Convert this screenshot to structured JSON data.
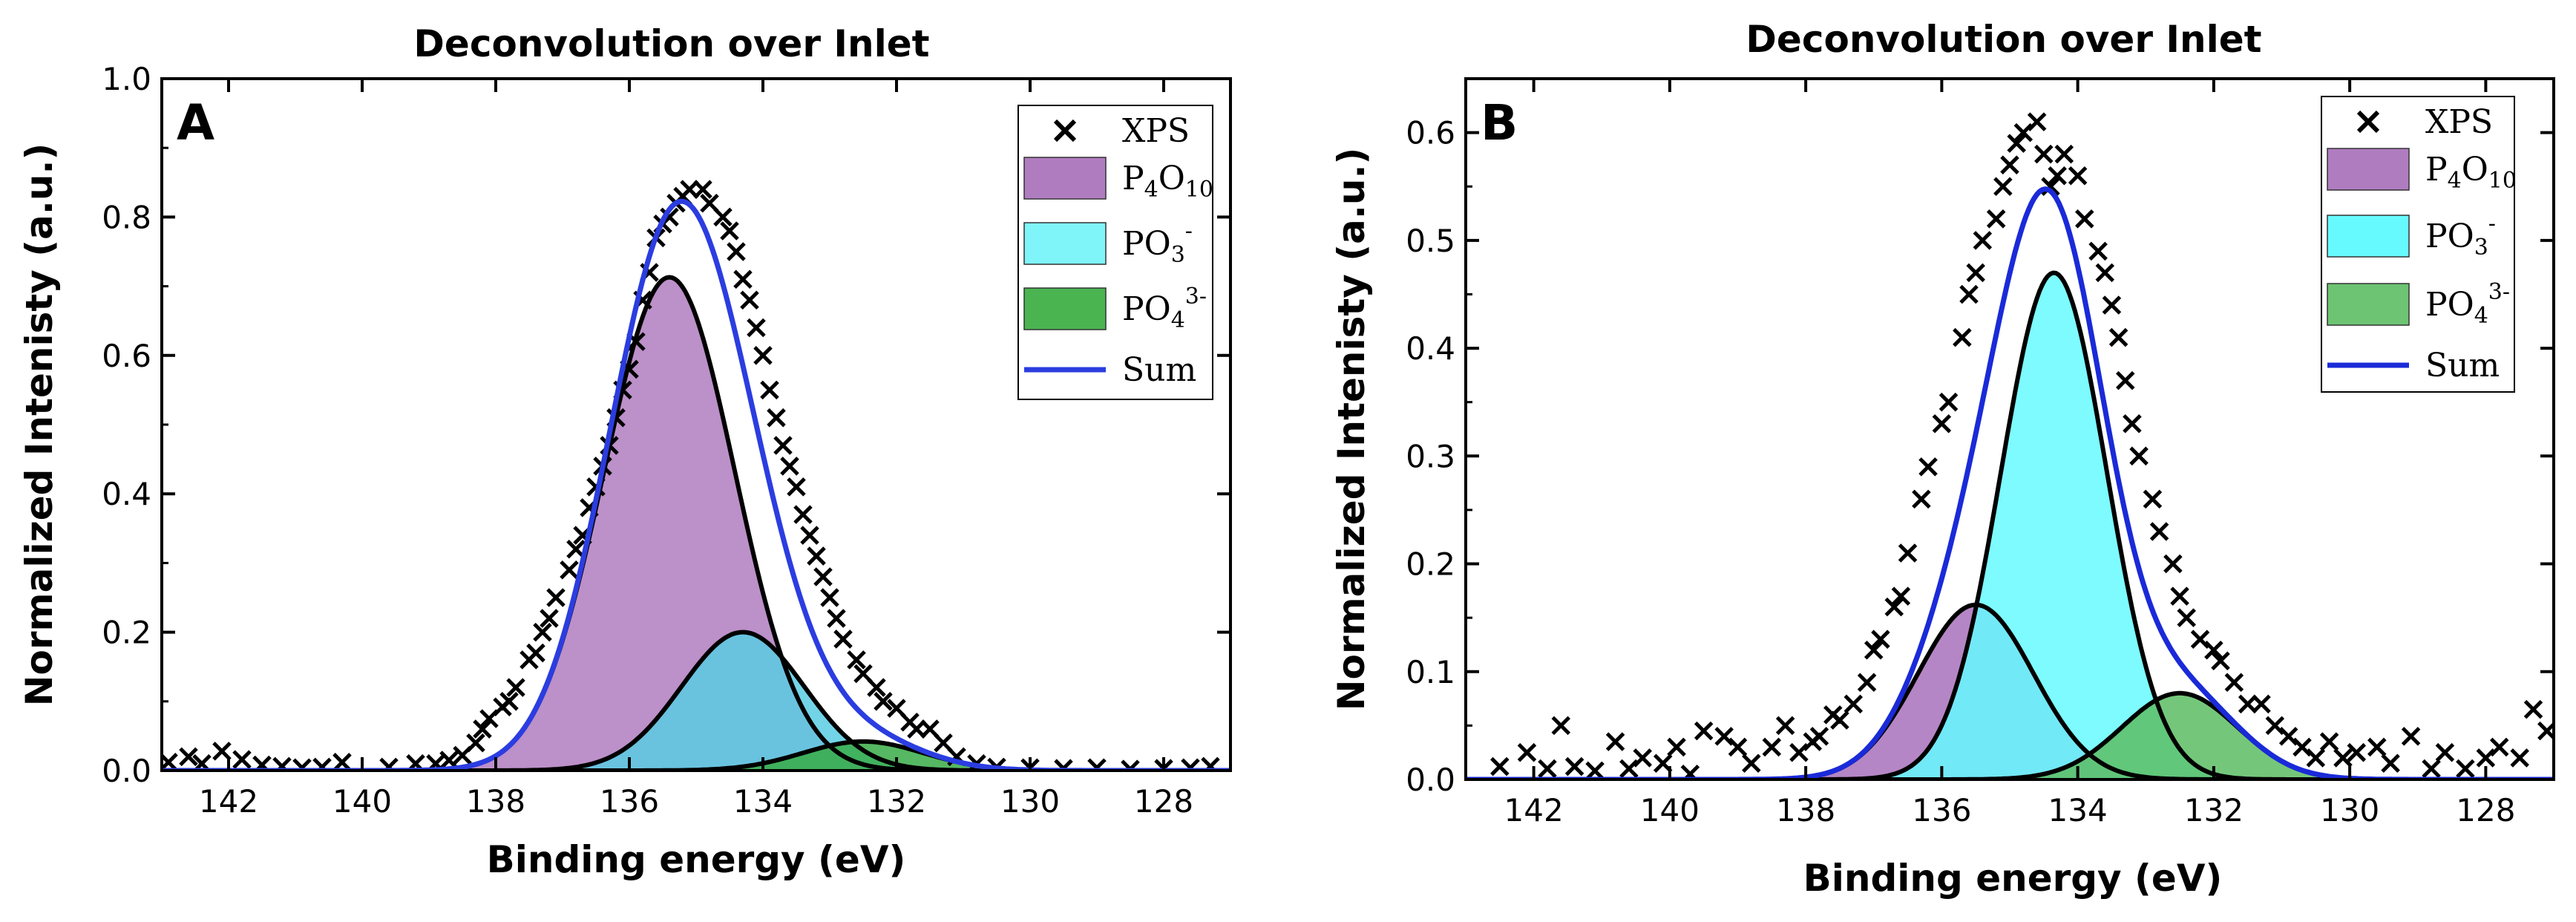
{
  "chart_data": [
    {
      "panel": "A",
      "type": "area",
      "title": "Deconvolution over Inlet",
      "xlabel": "Binding energy (eV)",
      "ylabel": "Normalized Intenisty (a.u.)",
      "xlim": [
        143,
        127
      ],
      "ylim": [
        0,
        1.0
      ],
      "x_reversed": true,
      "xticks": [
        142,
        140,
        138,
        136,
        134,
        132,
        130,
        128
      ],
      "xtick_labels": [
        "142",
        "140",
        "138",
        "136",
        "134",
        "132",
        "130",
        "128"
      ],
      "yticks": [
        0.0,
        0.2,
        0.4,
        0.6,
        0.8,
        1.0
      ],
      "ytick_labels": [
        "0.0",
        "0.2",
        "0.4",
        "0.6",
        "0.8",
        "1.0"
      ],
      "legend_position": "top-right",
      "legend": [
        {
          "key": "xps",
          "kind": "marker",
          "label": "XPS",
          "color": "#000000"
        },
        {
          "key": "p4o10",
          "kind": "fill",
          "label": "P",
          "sub1": "4",
          "mid": "O",
          "sub2": "10",
          "color": "#b07cc0"
        },
        {
          "key": "po3",
          "kind": "fill",
          "label": "PO",
          "sub1": "3",
          "sup": "-",
          "color": "#7ff5fa"
        },
        {
          "key": "po4",
          "kind": "fill",
          "label": "PO",
          "sub1": "4",
          "sup": "3-",
          "color": "#4ab451"
        },
        {
          "key": "sum",
          "kind": "line",
          "label": "Sum",
          "color": "#2b3de0"
        }
      ],
      "components": [
        {
          "key": "p4o10",
          "center": 135.4,
          "amplitude": 0.713,
          "sigma": 0.98,
          "fill": "#b07cc0",
          "edge": "#000000"
        },
        {
          "key": "po3",
          "center": 134.3,
          "amplitude": 0.2,
          "sigma": 0.92,
          "fill": "#5bcde3",
          "edge": "#000000"
        },
        {
          "key": "po4",
          "center": 132.5,
          "amplitude": 0.042,
          "sigma": 0.9,
          "fill": "#38ac47",
          "edge": "#000000"
        }
      ],
      "sum_color": "#2b3de0",
      "noise_amplitude": 0.012,
      "xps_points": [
        [
          142.9,
          0.012
        ],
        [
          142.6,
          0.02
        ],
        [
          142.4,
          0.01
        ],
        [
          142.1,
          0.028
        ],
        [
          141.8,
          0.016
        ],
        [
          141.5,
          0.008
        ],
        [
          141.2,
          0.006
        ],
        [
          140.9,
          0.004
        ],
        [
          140.6,
          0.005
        ],
        [
          140.3,
          0.012
        ],
        [
          139.6,
          0.005
        ],
        [
          139.2,
          0.01
        ],
        [
          138.9,
          0.01
        ],
        [
          138.7,
          0.015
        ],
        [
          138.5,
          0.022
        ],
        [
          138.3,
          0.04
        ],
        [
          138.2,
          0.06
        ],
        [
          138.1,
          0.075
        ],
        [
          137.9,
          0.092
        ],
        [
          137.8,
          0.1
        ],
        [
          137.7,
          0.12
        ],
        [
          137.5,
          0.16
        ],
        [
          137.4,
          0.17
        ],
        [
          137.3,
          0.2
        ],
        [
          137.2,
          0.22
        ],
        [
          137.1,
          0.25
        ],
        [
          136.9,
          0.29
        ],
        [
          136.8,
          0.32
        ],
        [
          136.7,
          0.34
        ],
        [
          136.6,
          0.38
        ],
        [
          136.5,
          0.41
        ],
        [
          136.4,
          0.44
        ],
        [
          136.3,
          0.47
        ],
        [
          136.2,
          0.51
        ],
        [
          136.1,
          0.55
        ],
        [
          136.0,
          0.58
        ],
        [
          135.9,
          0.62
        ],
        [
          135.8,
          0.68
        ],
        [
          135.7,
          0.72
        ],
        [
          135.6,
          0.77
        ],
        [
          135.5,
          0.79
        ],
        [
          135.4,
          0.8
        ],
        [
          135.3,
          0.82
        ],
        [
          135.2,
          0.83
        ],
        [
          135.1,
          0.84
        ],
        [
          134.9,
          0.84
        ],
        [
          134.8,
          0.82
        ],
        [
          134.6,
          0.8
        ],
        [
          134.5,
          0.78
        ],
        [
          134.4,
          0.75
        ],
        [
          134.3,
          0.71
        ],
        [
          134.2,
          0.68
        ],
        [
          134.1,
          0.64
        ],
        [
          134.0,
          0.6
        ],
        [
          133.9,
          0.55
        ],
        [
          133.8,
          0.51
        ],
        [
          133.7,
          0.47
        ],
        [
          133.6,
          0.44
        ],
        [
          133.5,
          0.41
        ],
        [
          133.4,
          0.37
        ],
        [
          133.3,
          0.34
        ],
        [
          133.2,
          0.31
        ],
        [
          133.1,
          0.28
        ],
        [
          133.0,
          0.25
        ],
        [
          132.9,
          0.22
        ],
        [
          132.8,
          0.19
        ],
        [
          132.6,
          0.16
        ],
        [
          132.5,
          0.14
        ],
        [
          132.3,
          0.12
        ],
        [
          132.2,
          0.1
        ],
        [
          132.0,
          0.09
        ],
        [
          131.8,
          0.07
        ],
        [
          131.7,
          0.06
        ],
        [
          131.5,
          0.06
        ],
        [
          131.3,
          0.04
        ],
        [
          131.1,
          0.02
        ],
        [
          130.8,
          0.01
        ],
        [
          130.5,
          0.005
        ],
        [
          130.0,
          0.004
        ],
        [
          129.5,
          0.003
        ],
        [
          129.0,
          0.004
        ],
        [
          128.5,
          0.002
        ],
        [
          128.0,
          0.003
        ],
        [
          127.6,
          0.004
        ],
        [
          127.3,
          0.006
        ]
      ]
    },
    {
      "panel": "B",
      "type": "area",
      "title": "Deconvolution over Inlet",
      "xlabel": "Binding energy (eV)",
      "ylabel": "Normalized Intenisty (a.u.)",
      "xlim": [
        143,
        127
      ],
      "ylim": [
        0,
        0.65
      ],
      "x_reversed": true,
      "xticks": [
        142,
        140,
        138,
        136,
        134,
        132,
        130,
        128
      ],
      "xtick_labels": [
        "142",
        "140",
        "138",
        "136",
        "134",
        "132",
        "130",
        "128"
      ],
      "yticks": [
        0.0,
        0.1,
        0.2,
        0.3,
        0.4,
        0.5,
        0.6
      ],
      "ytick_labels": [
        "0.0",
        "0.1",
        "0.2",
        "0.3",
        "0.4",
        "0.5",
        "0.6"
      ],
      "legend_position": "top-right",
      "legend": [
        {
          "key": "xps",
          "kind": "marker",
          "label": "XPS",
          "color": "#000000"
        },
        {
          "key": "p4o10",
          "kind": "fill",
          "label": "P",
          "sub1": "4",
          "mid": "O",
          "sub2": "10",
          "color": "#b07cc0"
        },
        {
          "key": "po3",
          "kind": "fill",
          "label": "PO",
          "sub1": "3",
          "sup": "-",
          "color": "#66faff"
        },
        {
          "key": "po4",
          "kind": "fill",
          "label": "PO",
          "sub1": "4",
          "sup": "3-",
          "color": "#6dc473"
        },
        {
          "key": "sum",
          "kind": "line",
          "label": "Sum",
          "color": "#1a2ad8"
        }
      ],
      "components": [
        {
          "key": "p4o10",
          "center": 135.5,
          "amplitude": 0.162,
          "sigma": 0.85,
          "fill": "#a871bb",
          "edge": "#000000"
        },
        {
          "key": "po3",
          "center": 134.35,
          "amplitude": 0.47,
          "sigma": 0.78,
          "fill": "#66faff",
          "edge": "#000000"
        },
        {
          "key": "po4",
          "center": 132.5,
          "amplitude": 0.08,
          "sigma": 0.85,
          "fill": "#5cbd63",
          "edge": "#000000"
        }
      ],
      "sum_color": "#1a2ad8",
      "noise_amplitude": 0.028,
      "xps_points": [
        [
          142.5,
          0.012
        ],
        [
          142.1,
          0.025
        ],
        [
          141.8,
          0.01
        ],
        [
          141.6,
          0.05
        ],
        [
          141.4,
          0.012
        ],
        [
          141.1,
          0.008
        ],
        [
          140.8,
          0.035
        ],
        [
          140.6,
          0.01
        ],
        [
          140.4,
          0.02
        ],
        [
          140.1,
          0.015
        ],
        [
          139.9,
          0.03
        ],
        [
          139.7,
          0.005
        ],
        [
          139.5,
          0.045
        ],
        [
          139.2,
          0.04
        ],
        [
          139.0,
          0.03
        ],
        [
          138.8,
          0.015
        ],
        [
          138.5,
          0.03
        ],
        [
          138.3,
          0.05
        ],
        [
          138.1,
          0.025
        ],
        [
          137.9,
          0.035
        ],
        [
          137.8,
          0.04
        ],
        [
          137.6,
          0.06
        ],
        [
          137.5,
          0.055
        ],
        [
          137.3,
          0.07
        ],
        [
          137.1,
          0.09
        ],
        [
          137.0,
          0.12
        ],
        [
          136.9,
          0.13
        ],
        [
          136.7,
          0.16
        ],
        [
          136.6,
          0.17
        ],
        [
          136.5,
          0.21
        ],
        [
          136.3,
          0.26
        ],
        [
          136.2,
          0.29
        ],
        [
          136.0,
          0.33
        ],
        [
          135.9,
          0.35
        ],
        [
          135.7,
          0.41
        ],
        [
          135.6,
          0.45
        ],
        [
          135.5,
          0.47
        ],
        [
          135.4,
          0.5
        ],
        [
          135.2,
          0.52
        ],
        [
          135.1,
          0.55
        ],
        [
          135.0,
          0.57
        ],
        [
          134.9,
          0.59
        ],
        [
          134.8,
          0.6
        ],
        [
          134.6,
          0.61
        ],
        [
          134.5,
          0.58
        ],
        [
          134.4,
          0.55
        ],
        [
          134.3,
          0.56
        ],
        [
          134.2,
          0.58
        ],
        [
          134.0,
          0.56
        ],
        [
          133.9,
          0.52
        ],
        [
          133.7,
          0.49
        ],
        [
          133.6,
          0.47
        ],
        [
          133.5,
          0.44
        ],
        [
          133.4,
          0.41
        ],
        [
          133.3,
          0.37
        ],
        [
          133.2,
          0.33
        ],
        [
          133.1,
          0.3
        ],
        [
          132.9,
          0.26
        ],
        [
          132.8,
          0.23
        ],
        [
          132.6,
          0.2
        ],
        [
          132.5,
          0.17
        ],
        [
          132.4,
          0.15
        ],
        [
          132.2,
          0.13
        ],
        [
          132.0,
          0.12
        ],
        [
          131.9,
          0.11
        ],
        [
          131.7,
          0.09
        ],
        [
          131.5,
          0.07
        ],
        [
          131.3,
          0.07
        ],
        [
          131.1,
          0.05
        ],
        [
          130.9,
          0.04
        ],
        [
          130.7,
          0.03
        ],
        [
          130.5,
          0.02
        ],
        [
          130.3,
          0.035
        ],
        [
          130.1,
          0.02
        ],
        [
          129.9,
          0.025
        ],
        [
          129.6,
          0.03
        ],
        [
          129.4,
          0.015
        ],
        [
          129.1,
          0.04
        ],
        [
          128.8,
          0.01
        ],
        [
          128.6,
          0.025
        ],
        [
          128.3,
          0.01
        ],
        [
          128.0,
          0.02
        ],
        [
          127.8,
          0.03
        ],
        [
          127.5,
          0.02
        ],
        [
          127.3,
          0.065
        ],
        [
          127.1,
          0.045
        ]
      ]
    }
  ]
}
